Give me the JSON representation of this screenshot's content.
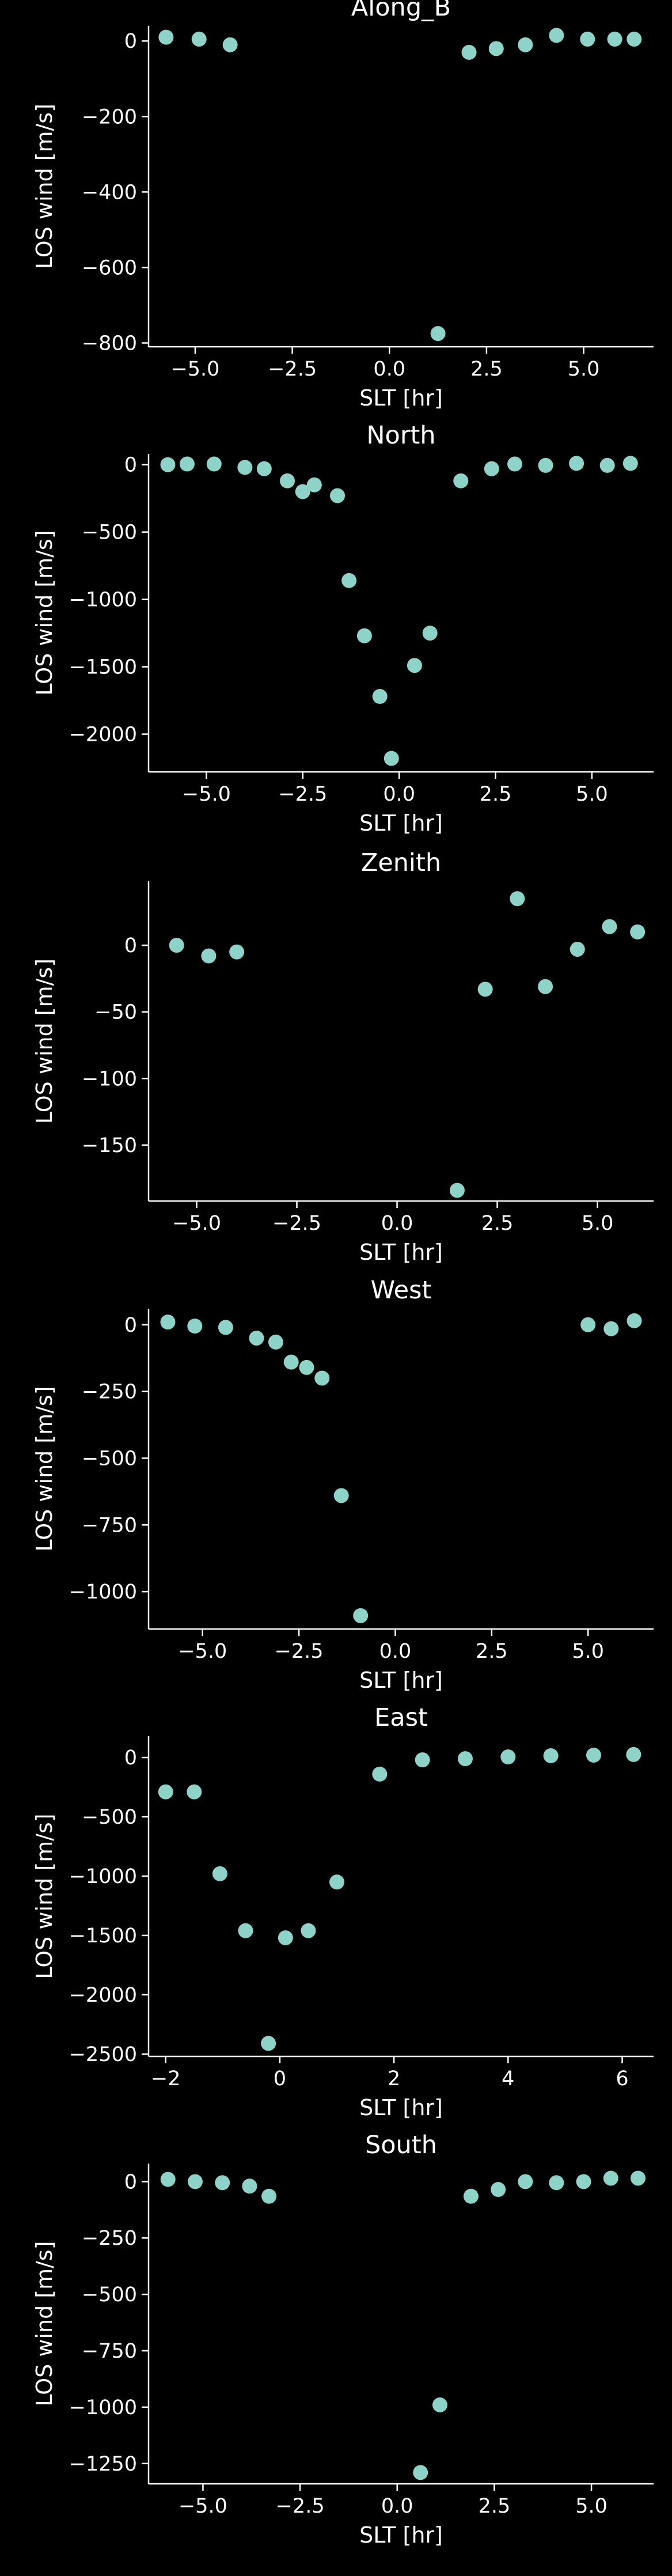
{
  "style": {
    "background": "#000000",
    "foreground": "#ffffff",
    "marker_color": "#8dd3c7"
  },
  "chart_data": [
    {
      "type": "scatter",
      "title": "Along_B",
      "xlabel": "SLT [hr]",
      "ylabel": "LOS wind [m/s]",
      "xlim": [
        -6.2,
        6.8
      ],
      "ylim": [
        -810,
        40
      ],
      "xticks": [
        -5,
        -2.5,
        0,
        2.5,
        5
      ],
      "xtick_labels": [
        "−5.0",
        "−2.5",
        "0.0",
        "2.5",
        "5.0"
      ],
      "yticks": [
        0,
        -200,
        -400,
        -600,
        -800
      ],
      "ytick_labels": [
        "0",
        "−200",
        "−400",
        "−600",
        "−800"
      ],
      "x": [
        -5.75,
        -4.9,
        -4.1,
        1.25,
        2.05,
        2.75,
        3.5,
        4.3,
        5.1,
        5.8,
        6.3
      ],
      "y": [
        10,
        5,
        -10,
        -775,
        -30,
        -20,
        -10,
        15,
        5,
        5,
        5
      ]
    },
    {
      "type": "scatter",
      "title": "North",
      "xlabel": "SLT [hr]",
      "ylabel": "LOS wind [m/s]",
      "xlim": [
        -6.5,
        6.6
      ],
      "ylim": [
        -2280,
        80
      ],
      "xticks": [
        -5,
        -2.5,
        0,
        2.5,
        5
      ],
      "xtick_labels": [
        "−5.0",
        "−2.5",
        "0.0",
        "2.5",
        "5.0"
      ],
      "yticks": [
        0,
        -500,
        -1000,
        -1500,
        -2000
      ],
      "ytick_labels": [
        "0",
        "−500",
        "−1000",
        "−1500",
        "−2000"
      ],
      "x": [
        -6.0,
        -5.5,
        -4.8,
        -4.0,
        -3.5,
        -2.9,
        -2.5,
        -2.2,
        -1.6,
        -1.3,
        -0.9,
        -0.5,
        -0.2,
        0.4,
        0.8,
        1.6,
        2.4,
        3.0,
        3.8,
        4.6,
        5.4,
        6.0
      ],
      "y": [
        0,
        5,
        5,
        -20,
        -30,
        -120,
        -200,
        -150,
        -230,
        -860,
        -1270,
        -1720,
        -2180,
        -1490,
        -1250,
        -120,
        -30,
        5,
        -5,
        10,
        -5,
        10
      ]
    },
    {
      "type": "scatter",
      "title": "Zenith",
      "xlabel": "SLT [hr]",
      "ylabel": "LOS wind [m/s]",
      "xlim": [
        -6.2,
        6.4
      ],
      "ylim": [
        -192,
        48
      ],
      "xticks": [
        -5,
        -2.5,
        0,
        2.5,
        5
      ],
      "xtick_labels": [
        "−5.0",
        "−2.5",
        "0.0",
        "2.5",
        "5.0"
      ],
      "yticks": [
        0,
        -50,
        -100,
        -150
      ],
      "ytick_labels": [
        "0",
        "−50",
        "−100",
        "−150"
      ],
      "x": [
        -5.5,
        -4.7,
        -4.0,
        1.5,
        2.2,
        3.0,
        3.7,
        4.5,
        5.3,
        6.0
      ],
      "y": [
        0,
        -8,
        -5,
        -184,
        -33,
        35,
        -31,
        -3,
        14,
        10
      ]
    },
    {
      "type": "scatter",
      "title": "West",
      "xlabel": "SLT [hr]",
      "ylabel": "LOS wind [m/s]",
      "xlim": [
        -6.4,
        6.7
      ],
      "ylim": [
        -1140,
        60
      ],
      "xticks": [
        -5,
        -2.5,
        0,
        2.5,
        5
      ],
      "xtick_labels": [
        "−5.0",
        "−2.5",
        "0.0",
        "2.5",
        "5.0"
      ],
      "yticks": [
        0,
        -250,
        -500,
        -750,
        -1000
      ],
      "ytick_labels": [
        "0",
        "−250",
        "−500",
        "−750",
        "−1000"
      ],
      "x": [
        -5.9,
        -5.2,
        -4.4,
        -3.6,
        -3.1,
        -2.7,
        -2.3,
        -1.9,
        -1.4,
        -0.9,
        5.0,
        5.6,
        6.2
      ],
      "y": [
        10,
        -5,
        -10,
        -50,
        -65,
        -140,
        -160,
        -200,
        -640,
        -1090,
        0,
        -15,
        15
      ]
    },
    {
      "type": "scatter",
      "title": "East",
      "xlabel": "SLT [hr]",
      "ylabel": "LOS wind [m/s]",
      "xlim": [
        -2.3,
        6.55
      ],
      "ylim": [
        -2520,
        180
      ],
      "xticks": [
        -2,
        0,
        2,
        4,
        6
      ],
      "xtick_labels": [
        "−2",
        "0",
        "2",
        "4",
        "6"
      ],
      "yticks": [
        0,
        -500,
        -1000,
        -1500,
        -2000,
        -2500
      ],
      "ytick_labels": [
        "0",
        "−500",
        "−1000",
        "−1500",
        "−2000",
        "−2500"
      ],
      "x": [
        -2.0,
        -1.5,
        -1.05,
        -0.6,
        -0.2,
        0.1,
        0.5,
        1.0,
        1.75,
        2.5,
        3.25,
        4.0,
        4.75,
        5.5,
        6.2
      ],
      "y": [
        -290,
        -290,
        -980,
        -1460,
        -2410,
        -1520,
        -1460,
        -1050,
        -140,
        -20,
        -10,
        5,
        15,
        20,
        25
      ]
    },
    {
      "type": "scatter",
      "title": "South",
      "xlabel": "SLT [hr]",
      "ylabel": "LOS wind [m/s]",
      "xlim": [
        -6.4,
        6.6
      ],
      "ylim": [
        -1340,
        80
      ],
      "xticks": [
        -5,
        -2.5,
        0,
        2.5,
        5
      ],
      "xtick_labels": [
        "−5.0",
        "−2.5",
        "0.0",
        "2.5",
        "5.0"
      ],
      "yticks": [
        0,
        -250,
        -500,
        -750,
        -1000,
        -1250
      ],
      "ytick_labels": [
        "0",
        "−250",
        "−500",
        "−750",
        "−1000",
        "−1250"
      ],
      "x": [
        -5.9,
        -5.2,
        -4.5,
        -3.8,
        -3.3,
        0.6,
        1.1,
        1.9,
        2.6,
        3.3,
        4.1,
        4.8,
        5.5,
        6.2
      ],
      "y": [
        10,
        0,
        -5,
        -20,
        -65,
        -1290,
        -990,
        -65,
        -35,
        0,
        -5,
        0,
        15,
        15
      ]
    }
  ]
}
